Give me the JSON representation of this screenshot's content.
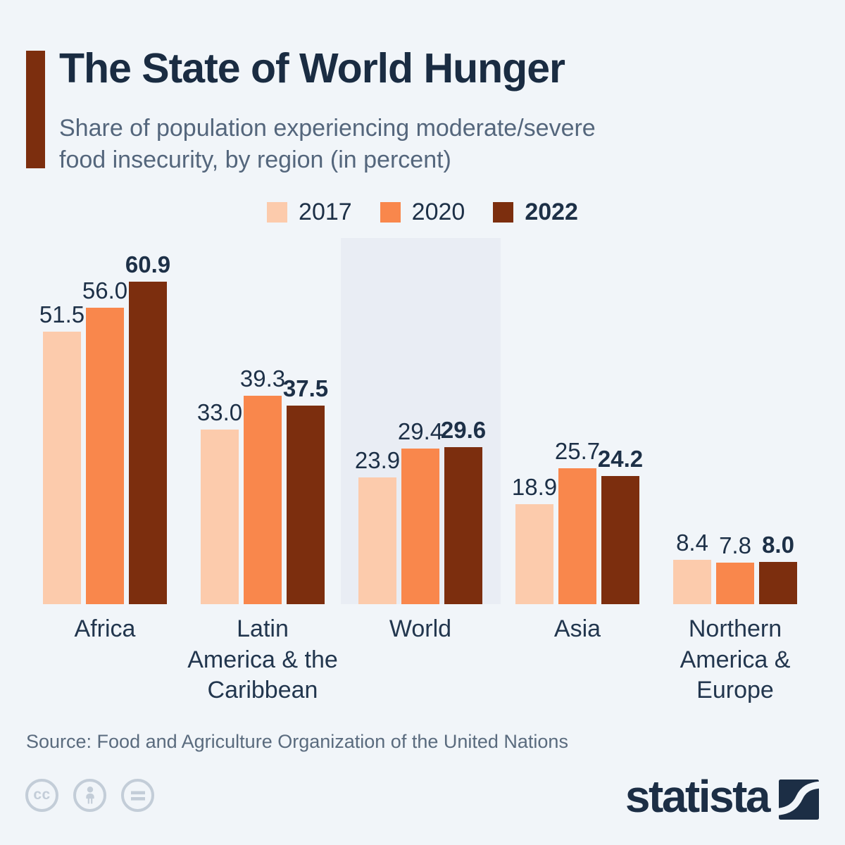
{
  "header": {
    "title": "The State of World Hunger",
    "subtitle_lines": [
      "Share of population experiencing moderate/severe",
      "food insecurity, by region (in percent)"
    ],
    "accent_color": "#7c2e0e"
  },
  "chart_data": {
    "type": "bar",
    "title": "The State of World Hunger",
    "subtitle": "Share of population experiencing moderate/severe food insecurity, by region (in percent)",
    "unit": "percent",
    "categories": [
      "Africa",
      "Latin America & the Caribbean",
      "World",
      "Asia",
      "Northern America & Europe"
    ],
    "category_labels": [
      "Africa",
      "Latin\nAmerica & the\nCaribbean",
      "World",
      "Asia",
      "Northern\nAmerica &\nEurope"
    ],
    "series": [
      {
        "name": "2017",
        "color": "#fccbac",
        "bold": false,
        "values": [
          51.5,
          33.0,
          23.9,
          18.9,
          8.4
        ]
      },
      {
        "name": "2020",
        "color": "#f9874c",
        "bold": false,
        "values": [
          56.0,
          39.3,
          29.4,
          25.7,
          7.8
        ]
      },
      {
        "name": "2022",
        "color": "#7c2e0e",
        "bold": true,
        "values": [
          60.9,
          37.5,
          29.6,
          24.2,
          8.0
        ]
      }
    ],
    "highlighted_category": "World",
    "highlight_color": "#e9edf4",
    "ylim": [
      0,
      65
    ],
    "grid": false,
    "legend_position": "top",
    "value_labels_shown": true
  },
  "footer": {
    "source": "Source: Food and Agriculture Organization of the United Nations",
    "license_icons": [
      "cc-icon",
      "attribution-person-icon",
      "equals-icon"
    ],
    "cc_glyph": "cc",
    "brand": "statista"
  },
  "colors": {
    "background": "#f1f5f9",
    "title_navy": "#1a2c42",
    "subtitle_gray": "#54667c",
    "label_navy": "#1d3047",
    "icon_gray": "#c3cdd8"
  }
}
